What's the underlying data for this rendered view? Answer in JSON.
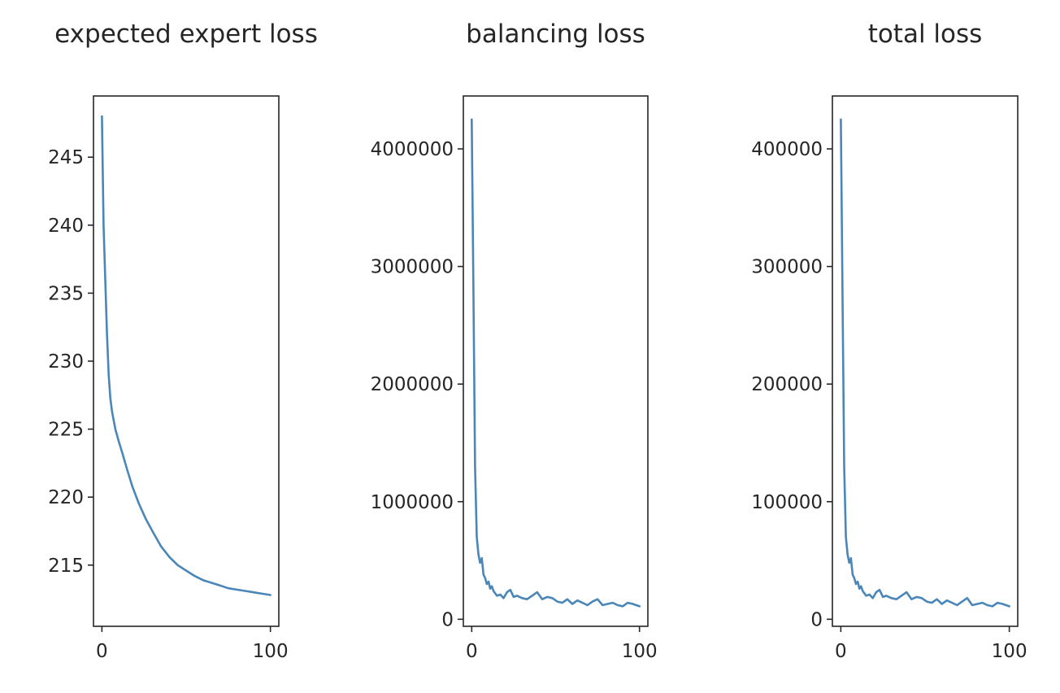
{
  "figure": {
    "colors": {
      "line": "#4a86b8",
      "axes": "#262626",
      "text": "#262626",
      "background": "#ffffff"
    }
  },
  "chart_data": [
    {
      "type": "line",
      "title": "expected expert loss",
      "xlabel": "",
      "ylabel": "",
      "xlim": [
        -5,
        105
      ],
      "ylim": [
        210.5,
        249.5
      ],
      "xticks": [
        0,
        100
      ],
      "xtick_labels": [
        "0",
        "100"
      ],
      "yticks": [
        215,
        220,
        225,
        230,
        235,
        240,
        245
      ],
      "ytick_labels": [
        "215",
        "220",
        "225",
        "230",
        "235",
        "240",
        "245"
      ],
      "grid": false,
      "legend": "none",
      "series": [
        {
          "x": [
            0,
            1,
            2,
            3,
            4,
            5,
            6,
            8,
            10,
            12,
            15,
            18,
            22,
            26,
            30,
            35,
            40,
            45,
            50,
            55,
            60,
            65,
            70,
            75,
            80,
            85,
            90,
            95,
            100
          ],
          "values": [
            248,
            240,
            236,
            232,
            229,
            227.3,
            226.3,
            225,
            224.1,
            223.3,
            222,
            220.8,
            219.5,
            218.4,
            217.5,
            216.4,
            215.6,
            215,
            214.6,
            214.2,
            213.9,
            213.7,
            213.5,
            213.3,
            213.2,
            213.1,
            213,
            212.9,
            212.8
          ]
        }
      ]
    },
    {
      "type": "line",
      "title": "balancing loss",
      "xlabel": "",
      "ylabel": "",
      "xlim": [
        -5,
        105
      ],
      "ylim": [
        -60000,
        4450000
      ],
      "xticks": [
        0,
        100
      ],
      "xtick_labels": [
        "0",
        "100"
      ],
      "yticks": [
        0,
        1000000,
        2000000,
        3000000,
        4000000
      ],
      "ytick_labels": [
        "0",
        "1000000",
        "2000000",
        "3000000",
        "4000000"
      ],
      "grid": false,
      "legend": "none",
      "series": [
        {
          "x": [
            0,
            1,
            2,
            3,
            4,
            5,
            6,
            7,
            8,
            9,
            10,
            11,
            12,
            13,
            14,
            15,
            17,
            19,
            21,
            23,
            25,
            27,
            30,
            33,
            36,
            39,
            42,
            45,
            48,
            51,
            54,
            57,
            60,
            63,
            66,
            69,
            72,
            75,
            78,
            81,
            84,
            87,
            90,
            93,
            96,
            98,
            100
          ],
          "values": [
            4250000,
            2800000,
            1300000,
            700000,
            550000,
            480000,
            520000,
            380000,
            350000,
            300000,
            320000,
            260000,
            280000,
            240000,
            220000,
            200000,
            210000,
            180000,
            230000,
            250000,
            190000,
            200000,
            180000,
            170000,
            200000,
            230000,
            170000,
            190000,
            180000,
            150000,
            140000,
            170000,
            130000,
            160000,
            140000,
            120000,
            150000,
            170000,
            120000,
            130000,
            140000,
            120000,
            110000,
            140000,
            130000,
            120000,
            110000
          ]
        }
      ]
    },
    {
      "type": "line",
      "title": "total loss",
      "xlabel": "",
      "ylabel": "",
      "xlim": [
        -5,
        105
      ],
      "ylim": [
        -6000,
        445000
      ],
      "xticks": [
        0,
        100
      ],
      "xtick_labels": [
        "0",
        "100"
      ],
      "yticks": [
        0,
        100000,
        200000,
        300000,
        400000
      ],
      "ytick_labels": [
        "0",
        "100000",
        "200000",
        "300000",
        "400000"
      ],
      "grid": false,
      "legend": "none",
      "series": [
        {
          "x": [
            0,
            1,
            2,
            3,
            4,
            5,
            6,
            7,
            8,
            9,
            10,
            11,
            12,
            13,
            14,
            15,
            17,
            19,
            21,
            23,
            25,
            27,
            30,
            33,
            36,
            39,
            42,
            45,
            48,
            51,
            54,
            57,
            60,
            63,
            66,
            69,
            72,
            75,
            78,
            81,
            84,
            87,
            90,
            93,
            96,
            98,
            100
          ],
          "values": [
            425000,
            280000,
            130000,
            70000,
            55000,
            48000,
            52000,
            38000,
            35000,
            30000,
            32000,
            26000,
            28000,
            24000,
            22000,
            20000,
            21000,
            18000,
            23000,
            25000,
            19000,
            20000,
            18000,
            17000,
            20000,
            23000,
            17000,
            19000,
            18000,
            15000,
            14000,
            17000,
            13000,
            16000,
            14000,
            12000,
            15000,
            18000,
            12000,
            13000,
            14000,
            12000,
            11000,
            14000,
            13000,
            12000,
            11000
          ]
        }
      ]
    }
  ]
}
